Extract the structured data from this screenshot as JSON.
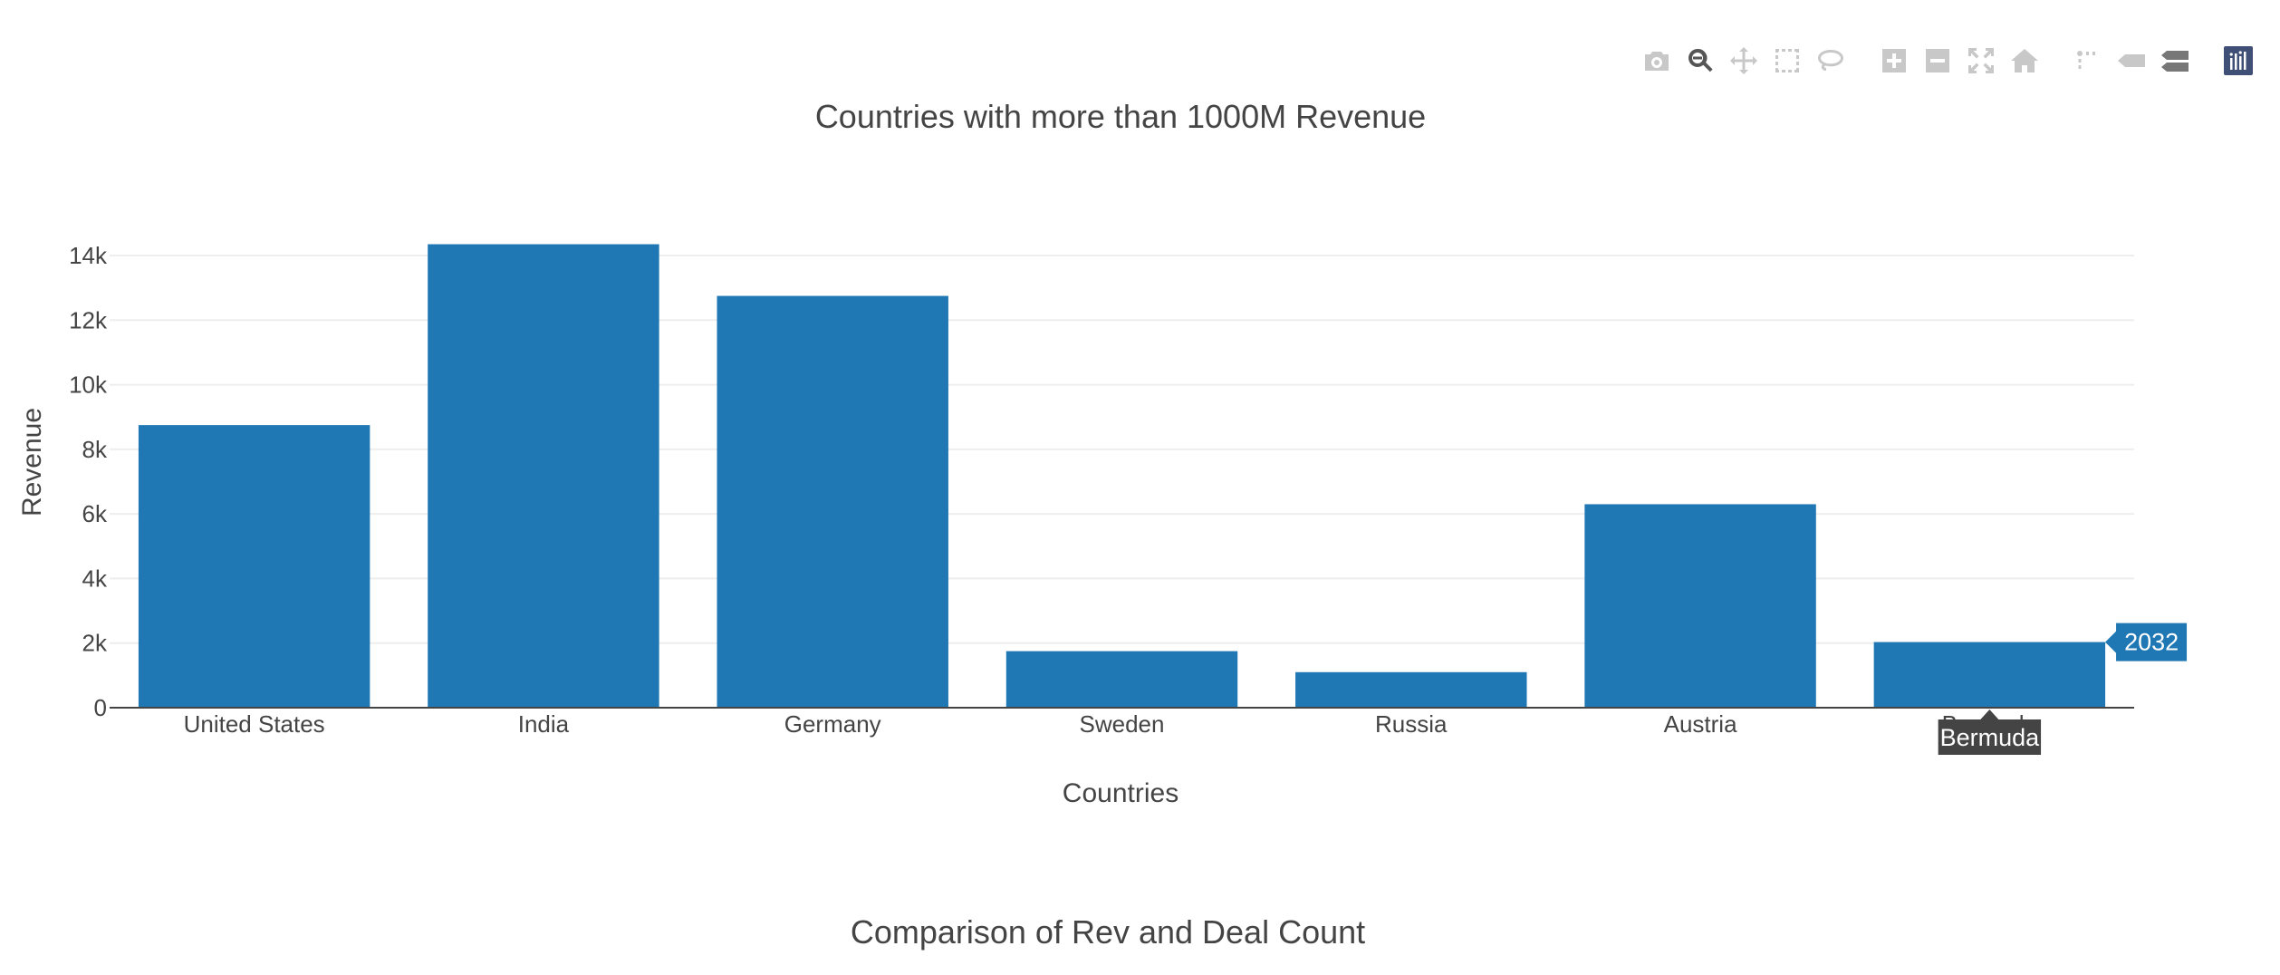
{
  "modebar": {
    "buttons": [
      {
        "name": "camera-icon",
        "group": 0
      },
      {
        "name": "zoom-icon",
        "group": 0,
        "active": true
      },
      {
        "name": "pan-icon",
        "group": 0
      },
      {
        "name": "box-select-icon",
        "group": 0
      },
      {
        "name": "lasso-select-icon",
        "group": 0
      },
      {
        "name": "zoom-in-icon",
        "group": 1
      },
      {
        "name": "zoom-out-icon",
        "group": 1
      },
      {
        "name": "autoscale-icon",
        "group": 1
      },
      {
        "name": "reset-axes-icon",
        "group": 1
      },
      {
        "name": "spike-lines-icon",
        "group": 2
      },
      {
        "name": "hover-closest-icon",
        "group": 2
      },
      {
        "name": "hover-compare-icon",
        "group": 2
      },
      {
        "name": "plotly-logo-icon",
        "group": 3
      }
    ]
  },
  "chart_data": {
    "type": "bar",
    "title": "Countries with more than 1000M Revenue",
    "xlabel": "Countries",
    "ylabel": "Revenue",
    "categories": [
      "United States",
      "India",
      "Germany",
      "Sweden",
      "Russia",
      "Austria",
      "Bermuda"
    ],
    "values": [
      8750,
      14350,
      12750,
      1750,
      1100,
      6300,
      2032
    ],
    "ylim": [
      0,
      15000
    ],
    "yticks": [
      0,
      2000,
      4000,
      6000,
      8000,
      10000,
      12000,
      14000
    ],
    "ytick_labels": [
      "0",
      "2k",
      "4k",
      "6k",
      "8k",
      "10k",
      "12k",
      "14k"
    ],
    "grid": true,
    "bar_color": "#1f77b4",
    "hover": {
      "category": "Bermuda",
      "value_label": "2032"
    }
  },
  "next_chart": {
    "title": "Comparison of Rev and Deal Count"
  }
}
